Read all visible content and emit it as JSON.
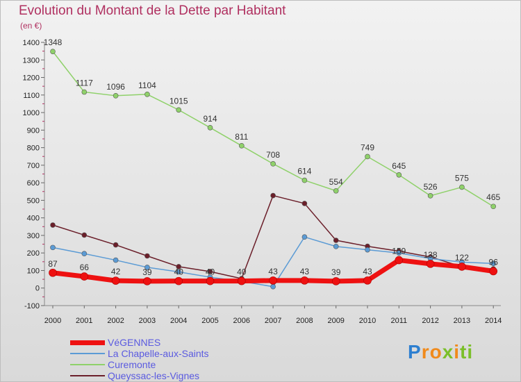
{
  "title": "Evolution du Montant de la Dette par Habitant",
  "unit_label": "(en €)",
  "logo_text": "Proxiti",
  "chart_data": {
    "type": "line",
    "title": "Evolution du Montant de la Dette par Habitant",
    "ylabel": "(en €)",
    "ylim": [
      -100,
      1400
    ],
    "y_ticks": [
      -100,
      0,
      100,
      200,
      300,
      400,
      500,
      600,
      700,
      800,
      900,
      1000,
      1100,
      1200,
      1300,
      1400
    ],
    "categories": [
      "2000",
      "2001",
      "2002",
      "2003",
      "2004",
      "2005",
      "2006",
      "2007",
      "2008",
      "2009",
      "2010",
      "2011",
      "2012",
      "2013",
      "2014"
    ],
    "grid": false,
    "legend_position": "bottom-left",
    "series": [
      {
        "name": "VéGENNES",
        "color": "#ee1111",
        "width": 7,
        "labels": true,
        "values": [
          87,
          66,
          42,
          39,
          40,
          40,
          40,
          43,
          43,
          39,
          43,
          159,
          138,
          122,
          96
        ]
      },
      {
        "name": "La Chapelle-aux-Saints",
        "color": "#5b9bd5",
        "width": 1.5,
        "labels": false,
        "values": [
          231,
          196,
          159,
          118,
          92,
          62,
          38,
          8,
          291,
          237,
          218,
          200,
          168,
          148,
          140
        ]
      },
      {
        "name": "Curemonte",
        "color": "#8fd16a",
        "width": 1.5,
        "labels": true,
        "values": [
          1348,
          1117,
          1096,
          1104,
          1015,
          914,
          811,
          708,
          614,
          554,
          749,
          645,
          526,
          575,
          465
        ]
      },
      {
        "name": "Queyssac-les-Vignes",
        "color": "#6b1f2a",
        "width": 1.5,
        "labels": false,
        "values": [
          359,
          302,
          246,
          183,
          122,
          94,
          54,
          527,
          482,
          272,
          238,
          210,
          177,
          122,
          109
        ]
      }
    ]
  }
}
